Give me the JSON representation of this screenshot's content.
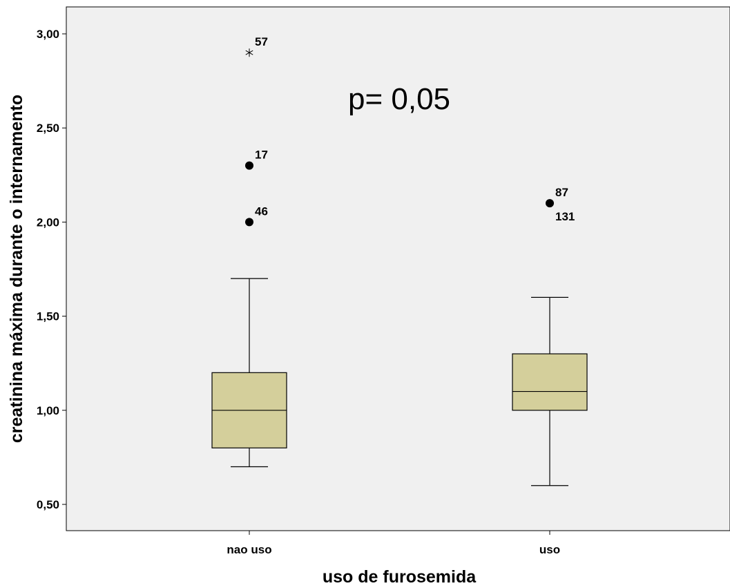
{
  "chart_data": {
    "type": "box",
    "xlabel": "uso de furosemida",
    "ylabel": "creatinina máxima durante o internamento",
    "ylim": [
      0.36,
      3.14
    ],
    "yticks": [
      0.5,
      1.0,
      1.5,
      2.0,
      2.5,
      3.0
    ],
    "ytick_labels": [
      "0,50",
      "1,00",
      "1,50",
      "2,00",
      "2,50",
      "3,00"
    ],
    "annotation": "p= 0,05",
    "colors": {
      "plot_bg": "#f0f0f0",
      "box_fill": "#d4cf9b",
      "line": "#000000"
    },
    "groups": [
      {
        "label": "nao uso",
        "whisker_low": 0.7,
        "q1": 0.8,
        "median": 1.0,
        "q3": 1.2,
        "whisker_high": 1.7,
        "outliers": [
          {
            "value": 2.0,
            "label": "46",
            "marker": "circle"
          },
          {
            "value": 2.3,
            "label": "17",
            "marker": "circle"
          },
          {
            "value": 2.9,
            "label": "57",
            "marker": "star"
          }
        ]
      },
      {
        "label": "uso",
        "whisker_low": 0.6,
        "q1": 1.0,
        "median": 1.1,
        "q3": 1.3,
        "whisker_high": 1.6,
        "outliers": [
          {
            "value": 2.1,
            "label": "87",
            "marker": "circle"
          }
        ],
        "extra_labels": [
          "131"
        ]
      }
    ]
  }
}
